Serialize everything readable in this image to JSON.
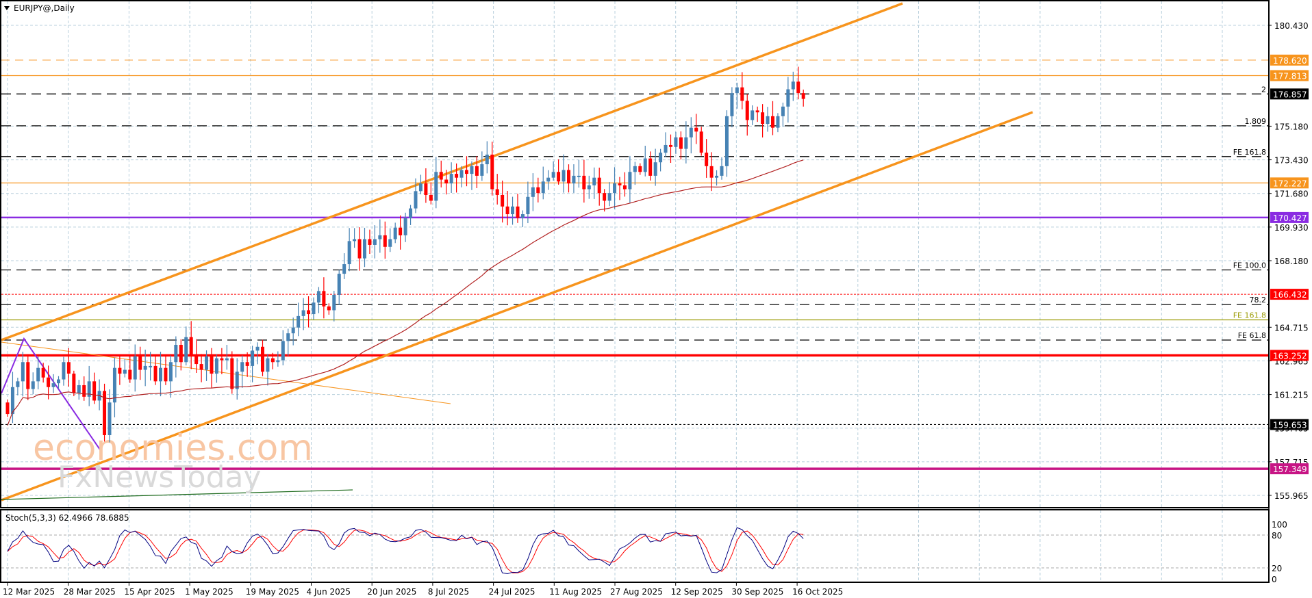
{
  "header": {
    "symbol_title": "EURJPY@,Daily"
  },
  "indicator": {
    "label": "Stoch(5,3,3) 62.4966 78.6885",
    "levels": [
      "100",
      "80",
      "20",
      "0"
    ]
  },
  "watermark": {
    "line1": "economies.com",
    "line2": "FxNewsToday"
  },
  "price_axis": {
    "ticks": [
      "180.430",
      "175.180",
      "173.430",
      "171.680",
      "169.930",
      "168.180",
      "164.715",
      "162.965",
      "161.215",
      "159.465",
      "157.715",
      "155.965"
    ],
    "tags": [
      {
        "value": "178.620",
        "color": "#f7941d"
      },
      {
        "value": "177.813",
        "color": "#f7941d"
      },
      {
        "value": "176.857",
        "color": "#000000"
      },
      {
        "value": "172.227",
        "color": "#f7941d"
      },
      {
        "value": "170.427",
        "color": "#8a2be2"
      },
      {
        "value": "166.432",
        "color": "#ff0000"
      },
      {
        "value": "163.252",
        "color": "#ff0000"
      },
      {
        "value": "159.653",
        "color": "#000000"
      },
      {
        "value": "157.349",
        "color": "#c71585"
      }
    ]
  },
  "fib_labels": [
    {
      "text": "2",
      "price": 176.857
    },
    {
      "text": "1.809",
      "price": 175.2
    },
    {
      "text": "FE 161.8",
      "price": 173.6
    },
    {
      "text": "FE 100.0",
      "price": 167.7
    },
    {
      "text": "78.2",
      "price": 165.9
    },
    {
      "text": "FE 161.8",
      "price": 165.1
    },
    {
      "text": "FE 61.8",
      "price": 164.05
    }
  ],
  "date_axis": {
    "labels": [
      "12 Mar 2025",
      "28 Mar 2025",
      "15 Apr 2025",
      "1 May 2025",
      "19 May 2025",
      "4 Jun 2025",
      "20 Jun 2025",
      "8 Jul 2025",
      "24 Jul 2025",
      "11 Aug 2025",
      "27 Aug 2025",
      "12 Sep 2025",
      "30 Sep 2025",
      "16 Oct 2025"
    ]
  },
  "colors": {
    "bull": "#4682b4",
    "bear": "#ff0000",
    "channel": "#f7941d",
    "ma": "#b22222",
    "stoch_main": "#000080",
    "stoch_signal": "#ff0000",
    "grid": "#b8cfdc"
  },
  "chart_data": {
    "type": "candlestick",
    "title": "EURJPY@,Daily",
    "xlabel": "",
    "ylabel": "",
    "ylim": [
      155.0,
      181.4
    ],
    "x_range": [
      "12 Mar 2025",
      "24 Oct 2025"
    ],
    "closes": [
      160.2,
      161.6,
      161.9,
      162.9,
      161.5,
      161.9,
      162.6,
      162.1,
      161.6,
      161.8,
      162.0,
      162.9,
      162.3,
      161.3,
      161.7,
      161.1,
      161.9,
      160.9,
      161.4,
      159.1,
      160.8,
      162.6,
      162.3,
      162.5,
      162.0,
      163.2,
      162.5,
      162.7,
      162.7,
      161.9,
      162.6,
      161.9,
      162.9,
      163.8,
      162.9,
      164.2,
      163.3,
      162.8,
      162.5,
      163.2,
      162.3,
      163.1,
      163.0,
      163.1,
      161.5,
      162.4,
      162.9,
      162.7,
      163.5,
      163.7,
      162.4,
      163.1,
      162.9,
      163.0,
      164.0,
      164.4,
      164.7,
      165.3,
      165.6,
      165.4,
      166.0,
      166.6,
      165.8,
      165.6,
      166.4,
      167.5,
      168.0,
      169.2,
      169.3,
      168.3,
      169.3,
      169.0,
      169.3,
      169.5,
      168.9,
      169.3,
      169.9,
      169.5,
      170.4,
      170.9,
      171.8,
      172.2,
      171.6,
      171.3,
      172.8,
      172.4,
      172.2,
      172.7,
      172.5,
      172.9,
      172.7,
      173.1,
      172.6,
      173.2,
      173.7,
      171.9,
      171.6,
      171.0,
      170.6,
      171.0,
      170.4,
      170.6,
      171.5,
      172.0,
      171.7,
      172.3,
      172.5,
      172.8,
      172.3,
      172.9,
      172.2,
      172.6,
      172.6,
      171.9,
      172.1,
      172.5,
      171.7,
      171.3,
      171.7,
      172.2,
      172.1,
      171.9,
      172.8,
      173.1,
      172.8,
      173.5,
      172.6,
      173.3,
      173.8,
      174.2,
      174.1,
      174.6,
      174.0,
      174.6,
      175.1,
      174.9,
      173.8,
      173.1,
      172.5,
      172.6,
      173.1,
      175.7,
      176.9,
      177.2,
      176.5,
      175.5,
      176.0,
      175.9,
      175.3,
      175.7,
      175.1,
      175.7,
      176.2,
      177.1,
      177.5,
      176.9,
      176.6
    ],
    "annotations": [
      "FE 161.8",
      "FE 100.0",
      "FE 61.8",
      "78.2",
      "1.809",
      "2"
    ],
    "stoch_k_last": 62.4966,
    "stoch_d_last": 78.6885
  }
}
